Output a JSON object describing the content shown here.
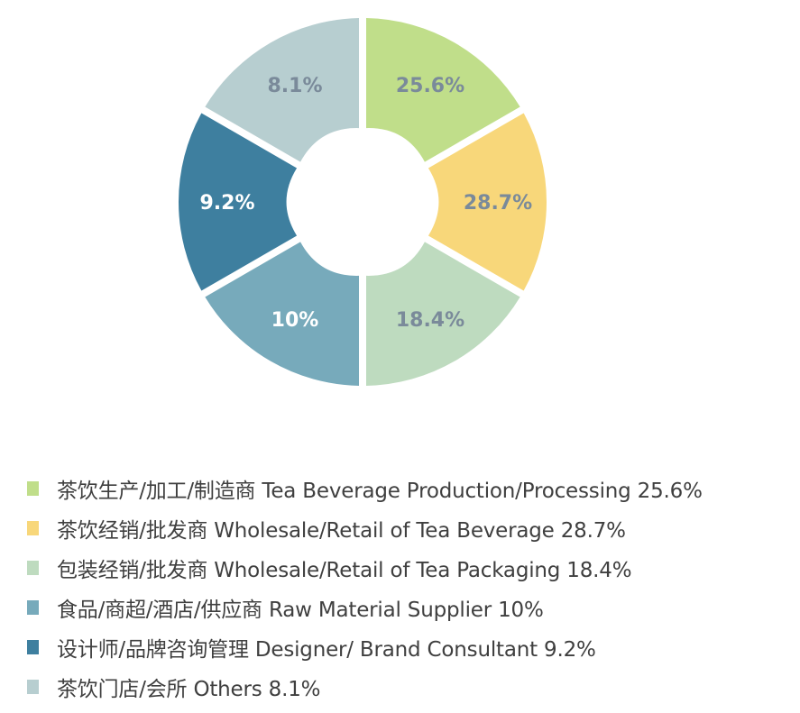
{
  "chart_data": {
    "type": "pie",
    "slices": [
      {
        "label": "茶饮生产/加工/制造商 Tea Beverage Production/Processing 25.6%",
        "value_label": "25.6%",
        "value": 25.6,
        "color": "#c0de8a",
        "text_color": "#7a8a9a"
      },
      {
        "label": "茶饮经销/批发商 Wholesale/Retail of Tea Beverage 28.7%",
        "value_label": "28.7%",
        "value": 28.7,
        "color": "#f8d77a",
        "text_color": "#7a8a9a"
      },
      {
        "label": "包装经销/批发商 Wholesale/Retail of Tea Packaging 18.4%",
        "value_label": "18.4%",
        "value": 18.4,
        "color": "#bedbbf",
        "text_color": "#7a8a9a"
      },
      {
        "label": "食品/商超/酒店/供应商 Raw Material Supplier 10%",
        "value_label": "10%",
        "value": 10,
        "color": "#77aabb",
        "text_color": "#ffffff"
      },
      {
        "label": "设计师/品牌咨询管理 Designer/ Brand Consultant 9.2%",
        "value_label": "9.2%",
        "value": 9.2,
        "color": "#3e7f9f",
        "text_color": "#ffffff"
      },
      {
        "label": "茶饮门店/会所 Others 8.1%",
        "value_label": "8.1%",
        "value": 8.1,
        "color": "#b7ced0",
        "text_color": "#7a8a9a"
      }
    ]
  }
}
